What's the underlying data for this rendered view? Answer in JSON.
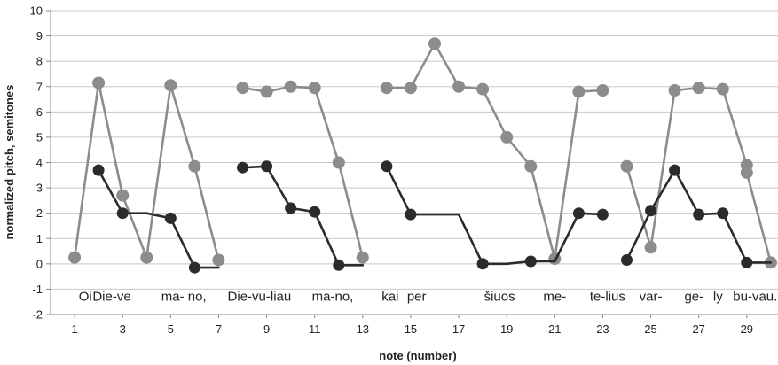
{
  "chart_data": {
    "type": "line",
    "xlabel": "note (number)",
    "ylabel": "normalized pitch, semitones",
    "xlim": [
      0,
      30.3
    ],
    "ylim": [
      -2,
      10
    ],
    "x_ticks": [
      1,
      3,
      5,
      7,
      9,
      11,
      13,
      15,
      17,
      19,
      21,
      23,
      25,
      27,
      29
    ],
    "y_ticks": [
      -2,
      -1,
      0,
      1,
      2,
      3,
      4,
      5,
      6,
      7,
      8,
      9,
      10
    ],
    "grid": "horizontal",
    "colors": {
      "light": "#8c8c8c",
      "dark": "#2b2b2b",
      "grid": "#c8c8c8"
    },
    "series": [
      {
        "color": "#8c8c8c",
        "segments": [
          [
            [
              1,
              0.25
            ],
            [
              2,
              7.15
            ],
            [
              3,
              2.7
            ],
            [
              4,
              0.25
            ],
            [
              5,
              7.05
            ],
            [
              6,
              3.85
            ],
            [
              7,
              0.15
            ]
          ],
          [
            [
              8,
              6.95
            ],
            [
              9,
              6.8
            ],
            [
              10,
              7.0
            ],
            [
              11,
              6.95
            ],
            [
              12,
              4.0
            ],
            [
              13,
              0.25
            ]
          ],
          [
            [
              14,
              6.95
            ],
            [
              15,
              6.95
            ],
            [
              16,
              8.7
            ],
            [
              17,
              7.0
            ],
            [
              18,
              6.9
            ],
            [
              19,
              5.0
            ],
            [
              20,
              3.85
            ],
            [
              21,
              0.2
            ],
            [
              22,
              6.8
            ],
            [
              23,
              6.85
            ]
          ],
          [
            [
              24,
              3.85
            ],
            [
              25,
              0.65
            ],
            [
              26,
              6.85
            ],
            [
              27,
              6.95
            ],
            [
              28,
              6.9
            ],
            [
              29,
              3.9
            ],
            [
              29,
              3.6
            ],
            [
              30,
              0.05
            ]
          ]
        ]
      },
      {
        "color": "#2b2b2b",
        "segments": [
          [
            [
              2,
              3.7
            ],
            [
              3,
              2.0
            ],
            [
              4,
              2.0
            ],
            [
              5,
              1.8
            ],
            [
              6,
              -0.15
            ],
            [
              7,
              -0.15
            ]
          ],
          [
            [
              8,
              3.8
            ],
            [
              9,
              3.85
            ],
            [
              10,
              2.2
            ],
            [
              11,
              2.05
            ],
            [
              12,
              -0.05
            ],
            [
              13,
              -0.05
            ]
          ],
          [
            [
              14,
              3.85
            ],
            [
              15,
              1.95
            ],
            [
              16,
              1.95
            ],
            [
              17,
              1.95
            ],
            [
              18,
              0.0
            ],
            [
              19,
              0.0
            ],
            [
              20,
              0.1
            ],
            [
              21,
              0.1
            ],
            [
              22,
              2.0
            ],
            [
              23,
              1.95
            ]
          ],
          [
            [
              24,
              0.15
            ],
            [
              25,
              2.1
            ],
            [
              26,
              3.7
            ],
            [
              27,
              1.95
            ],
            [
              28,
              2.0
            ],
            [
              29,
              0.05
            ],
            [
              30,
              0.05
            ]
          ]
        ],
        "markers": [
          2,
          3,
          5,
          6,
          8,
          9,
          10,
          11,
          12,
          14,
          15,
          18,
          20,
          22,
          23,
          24,
          25,
          26,
          27,
          28,
          29
        ]
      }
    ],
    "annotations": [
      {
        "text": "Oi",
        "x": 1.45,
        "y": -1.45
      },
      {
        "text": "Die-ve",
        "x": 2.55,
        "y": -1.45
      },
      {
        "text": "ma- no,",
        "x": 5.55,
        "y": -1.45
      },
      {
        "text": "Die-vu-liau",
        "x": 8.7,
        "y": -1.45
      },
      {
        "text": "ma-no,",
        "x": 11.75,
        "y": -1.45
      },
      {
        "text": "kai",
        "x": 14.15,
        "y": -1.45
      },
      {
        "text": "per",
        "x": 15.25,
        "y": -1.45
      },
      {
        "text": "šiuos",
        "x": 18.7,
        "y": -1.45
      },
      {
        "text": "me-",
        "x": 21.0,
        "y": -1.45
      },
      {
        "text": "te-lius",
        "x": 23.2,
        "y": -1.45
      },
      {
        "text": "var-",
        "x": 25.0,
        "y": -1.45
      },
      {
        "text": "ge-",
        "x": 26.8,
        "y": -1.45
      },
      {
        "text": "ly",
        "x": 27.8,
        "y": -1.45
      },
      {
        "text": "bu-vau.",
        "x": 29.35,
        "y": -1.45
      }
    ]
  }
}
